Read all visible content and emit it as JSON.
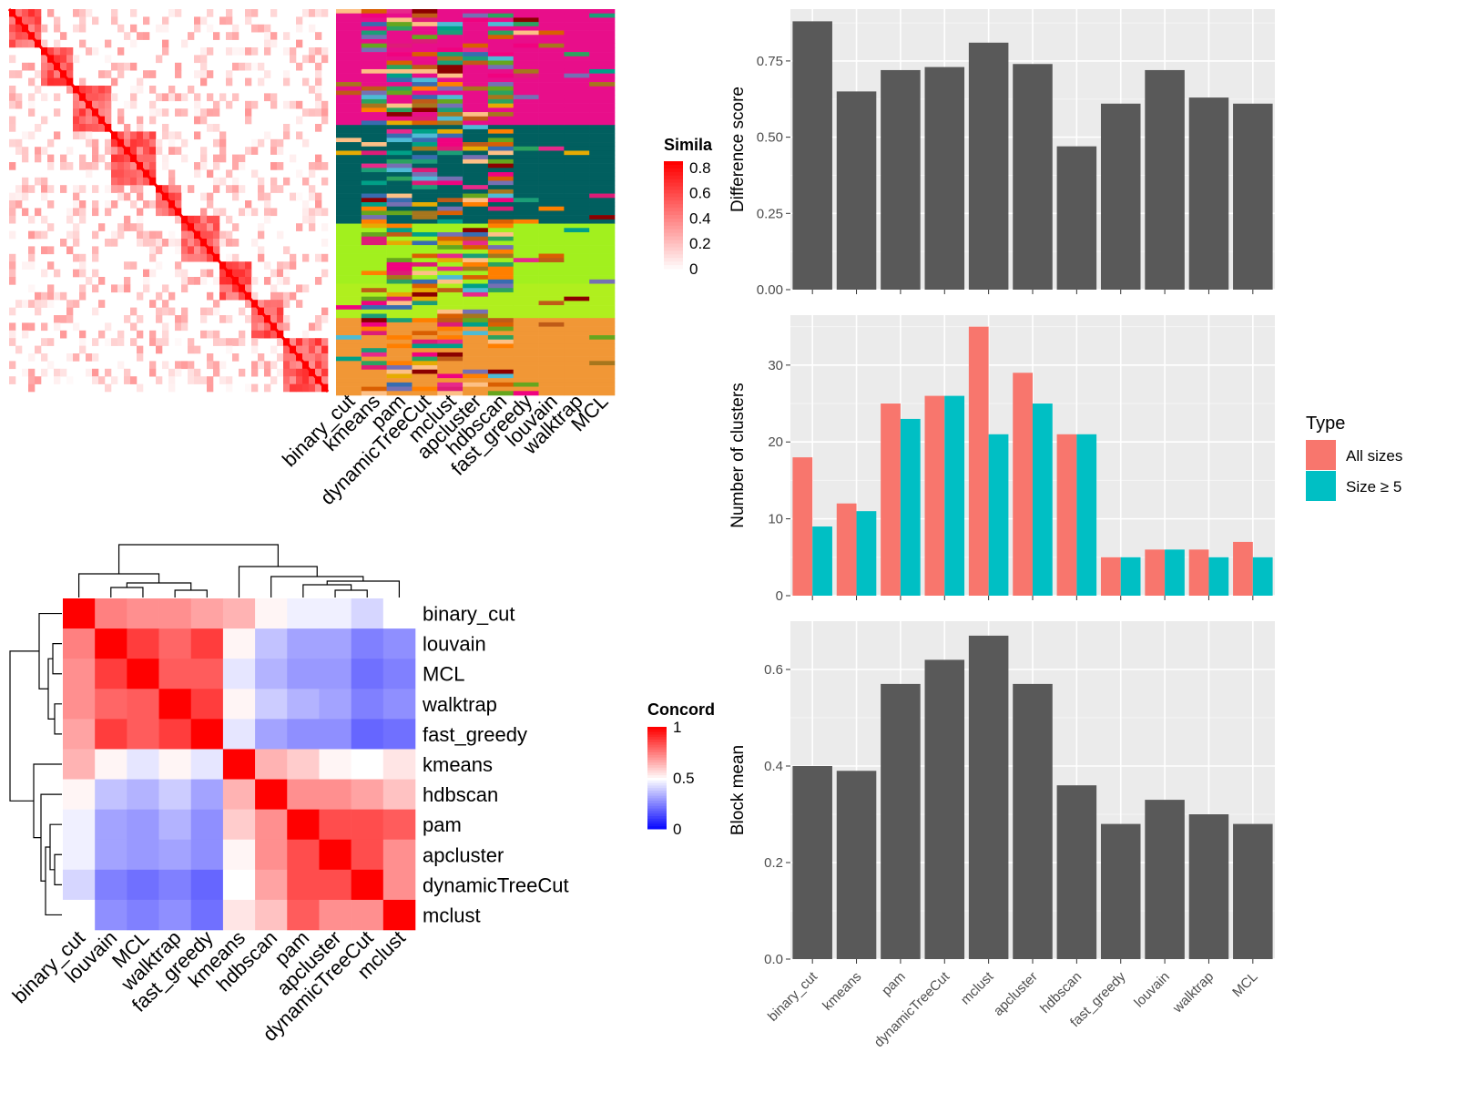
{
  "methods_heatmap_order": [
    "binary_cut",
    "louvain",
    "MCL",
    "walktrap",
    "fast_greedy",
    "kmeans",
    "hdbscan",
    "pam",
    "apcluster",
    "dynamicTreeCut",
    "mclust"
  ],
  "class_methods": [
    "binary_cut",
    "kmeans",
    "pam",
    "dynamicTreeCut",
    "mclust",
    "apcluster",
    "hdbscan",
    "fast_greedy",
    "louvain",
    "walktrap",
    "MCL"
  ],
  "similarity_legend": {
    "title": "Simila",
    "ticks": [
      "0.8",
      "0.6",
      "0.4",
      "0.2",
      "0"
    ]
  },
  "concordance_legend": {
    "title": "Concord",
    "ticks": [
      "1",
      "0.5",
      "0"
    ]
  },
  "type_legend": {
    "title": "Type",
    "items": [
      {
        "label": "All sizes",
        "color": "#f8766d"
      },
      {
        "label": "Size ≥ 5",
        "color": "#00bfc4"
      }
    ]
  },
  "chart_data": [
    {
      "type": "heatmap",
      "name": "concordance",
      "categories": [
        "binary_cut",
        "louvain",
        "MCL",
        "walktrap",
        "fast_greedy",
        "kmeans",
        "hdbscan",
        "pam",
        "apcluster",
        "dynamicTreeCut",
        "mclust"
      ],
      "values": [
        [
          1.0,
          0.75,
          0.72,
          0.72,
          0.68,
          0.65,
          0.52,
          0.47,
          0.47,
          0.42,
          0.5
        ],
        [
          0.75,
          1.0,
          0.88,
          0.8,
          0.88,
          0.52,
          0.38,
          0.32,
          0.32,
          0.25,
          0.28
        ],
        [
          0.72,
          0.88,
          1.0,
          0.82,
          0.82,
          0.45,
          0.35,
          0.3,
          0.3,
          0.22,
          0.25
        ],
        [
          0.72,
          0.8,
          0.82,
          1.0,
          0.88,
          0.52,
          0.4,
          0.35,
          0.32,
          0.25,
          0.28
        ],
        [
          0.68,
          0.88,
          0.82,
          0.88,
          1.0,
          0.45,
          0.32,
          0.28,
          0.28,
          0.2,
          0.22
        ],
        [
          0.65,
          0.52,
          0.45,
          0.52,
          0.45,
          1.0,
          0.65,
          0.6,
          0.52,
          0.5,
          0.55
        ],
        [
          0.52,
          0.38,
          0.35,
          0.4,
          0.32,
          0.65,
          1.0,
          0.72,
          0.72,
          0.68,
          0.62
        ],
        [
          0.47,
          0.32,
          0.3,
          0.35,
          0.28,
          0.6,
          0.72,
          1.0,
          0.85,
          0.85,
          0.82
        ],
        [
          0.47,
          0.32,
          0.3,
          0.32,
          0.28,
          0.52,
          0.72,
          0.85,
          1.0,
          0.85,
          0.72
        ],
        [
          0.42,
          0.25,
          0.22,
          0.25,
          0.2,
          0.5,
          0.68,
          0.85,
          0.85,
          1.0,
          0.72
        ],
        [
          0.5,
          0.28,
          0.25,
          0.28,
          0.22,
          0.55,
          0.62,
          0.82,
          0.72,
          0.72,
          1.0
        ]
      ],
      "scale": [
        0,
        1
      ]
    },
    {
      "type": "bar",
      "name": "difference-score",
      "categories": [
        "binary_cut",
        "kmeans",
        "pam",
        "dynamicTreeCut",
        "mclust",
        "apcluster",
        "hdbscan",
        "fast_greedy",
        "louvain",
        "walktrap",
        "MCL"
      ],
      "values": [
        0.88,
        0.65,
        0.72,
        0.73,
        0.81,
        0.74,
        0.47,
        0.61,
        0.72,
        0.63,
        0.61
      ],
      "ylabel": "Difference score",
      "ylim": [
        0,
        0.92
      ],
      "yticks": [
        "0.00",
        "0.25",
        "0.50",
        "0.75"
      ],
      "ytick_values": [
        0,
        0.25,
        0.5,
        0.75
      ],
      "grid": true
    },
    {
      "type": "bar",
      "name": "number-of-clusters",
      "categories": [
        "binary_cut",
        "kmeans",
        "pam",
        "dynamicTreeCut",
        "mclust",
        "apcluster",
        "hdbscan",
        "fast_greedy",
        "louvain",
        "walktrap",
        "MCL"
      ],
      "series": [
        {
          "name": "All sizes",
          "values": [
            18,
            12,
            25,
            26,
            35,
            29,
            21,
            5,
            6,
            6,
            7
          ]
        },
        {
          "name": "Size ≥ 5",
          "values": [
            9,
            11,
            23,
            26,
            21,
            25,
            21,
            5,
            6,
            5,
            5
          ]
        }
      ],
      "ylabel": "Number of clusters",
      "ylim": [
        0,
        36.5
      ],
      "yticks": [
        "0",
        "10",
        "20",
        "30"
      ],
      "ytick_values": [
        0,
        10,
        20,
        30
      ],
      "grid": true
    },
    {
      "type": "bar",
      "name": "block-mean",
      "categories": [
        "binary_cut",
        "kmeans",
        "pam",
        "dynamicTreeCut",
        "mclust",
        "apcluster",
        "hdbscan",
        "fast_greedy",
        "louvain",
        "walktrap",
        "MCL"
      ],
      "values": [
        0.4,
        0.39,
        0.57,
        0.62,
        0.67,
        0.57,
        0.36,
        0.28,
        0.33,
        0.3,
        0.28
      ],
      "ylabel": "Block mean",
      "ylim": [
        0,
        0.7
      ],
      "yticks": [
        "0.0",
        "0.2",
        "0.4",
        "0.6"
      ],
      "ytick_values": [
        0,
        0.2,
        0.4,
        0.6
      ],
      "grid": true
    }
  ]
}
